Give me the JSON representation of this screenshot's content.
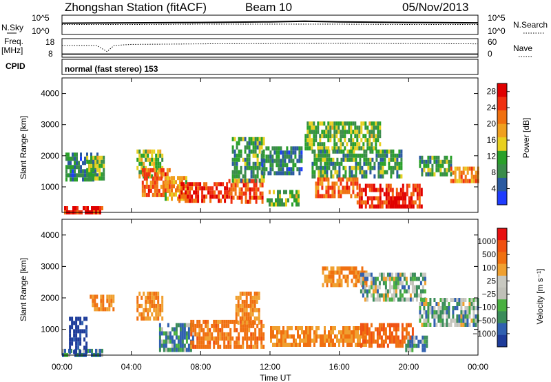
{
  "header": {
    "station_title": "Zhongshan Station (fitACF)",
    "beam_label": "Beam 10",
    "date": "05/Nov/2013"
  },
  "strips": {
    "nsky": {
      "left_label": "N.Sky",
      "left_ticks": [
        "10^5",
        "10^0"
      ],
      "right_ticks": [
        "10^5",
        "10^0"
      ],
      "right_label": "N.Search"
    },
    "freq": {
      "left_label_top": "Freq.",
      "left_label_unit": "[MHz]",
      "left_ticks": [
        "18",
        "8"
      ],
      "right_ticks": [
        "60",
        "0"
      ],
      "right_label": "Nave"
    },
    "cpid": {
      "label": "CPID",
      "mode_text": "normal (fast stereo) 153"
    }
  },
  "power_panel": {
    "ylabel": "Slant Range [km]",
    "yticks": [
      "1000",
      "2000",
      "3000",
      "4000"
    ],
    "colorbar_label": "Power [dB]",
    "colorbar_ticks": [
      "4",
      "8",
      "12",
      "16",
      "20",
      "24",
      "28"
    ],
    "colors": [
      "#1e3cff",
      "#2a5aa0",
      "#3a8c4a",
      "#2aa02a",
      "#e8d020",
      "#f0a020",
      "#f07010",
      "#f03010",
      "#e00000"
    ]
  },
  "velocity_panel": {
    "ylabel": "Slant Range [km]",
    "yticks": [
      "1000",
      "2000",
      "3000",
      "4000"
    ],
    "colorbar_label": "Velocity [m s⁻¹]",
    "colorbar_ticks": [
      "1000",
      "500",
      "100",
      "25",
      "−25",
      "−100",
      "−500",
      "−1000"
    ],
    "colors": [
      "#1e3c9a",
      "#3060b0",
      "#3a8c5a",
      "#4ab040",
      "#c0c0b8",
      "#c8c8c0",
      "#f0a030",
      "#f07010",
      "#f05010",
      "#e81010"
    ]
  },
  "xaxis": {
    "label": "Time UT",
    "ticks": [
      "00:00",
      "04:00",
      "08:00",
      "12:00",
      "16:00",
      "20:00",
      "00:00"
    ]
  },
  "chart_data": [
    {
      "type": "line",
      "title": "N.Sky / N.Search",
      "x_range": [
        0,
        24
      ],
      "series": [
        {
          "name": "N.Sky",
          "x": [
            0,
            4,
            8,
            12,
            14,
            16,
            20,
            24
          ],
          "values": [
            3.0,
            3.1,
            3.2,
            3.4,
            3.6,
            3.4,
            3.2,
            3.1
          ]
        },
        {
          "name": "N.Search",
          "x": [
            0,
            4,
            8,
            12,
            16,
            20,
            24
          ],
          "values": [
            2.6,
            2.6,
            2.7,
            2.7,
            2.7,
            2.6,
            2.6
          ]
        }
      ]
    },
    {
      "type": "line",
      "title": "Freq. / Nave",
      "x_range": [
        0,
        24
      ],
      "series": [
        {
          "name": "Freq.",
          "x": [
            0,
            24
          ],
          "values": [
            9.5,
            9.5
          ]
        },
        {
          "name": "Nave",
          "x": [
            0,
            2,
            2.6,
            3,
            4,
            8,
            12,
            16,
            20,
            24
          ],
          "values": [
            40,
            40,
            18,
            40,
            44,
            46,
            47,
            48,
            47,
            46
          ]
        }
      ]
    },
    {
      "type": "heatmap",
      "title": "Power [dB]",
      "x_range": [
        0,
        24
      ],
      "ylim": [
        180,
        4500
      ],
      "value_range": [
        0,
        30
      ],
      "regions": [
        {
          "t0": 0.0,
          "t1": 2.3,
          "r0": 200,
          "r1": 380,
          "v": 26
        },
        {
          "t0": 0.2,
          "t1": 2.0,
          "r0": 1200,
          "r1": 2100,
          "v": 8
        },
        {
          "t0": 1.4,
          "t1": 2.4,
          "r0": 1300,
          "r1": 2000,
          "v": 12
        },
        {
          "t0": 4.3,
          "t1": 5.8,
          "r0": 1300,
          "r1": 2200,
          "v": 14
        },
        {
          "t0": 4.6,
          "t1": 6.2,
          "r0": 800,
          "r1": 1600,
          "v": 22
        },
        {
          "t0": 5.8,
          "t1": 7.2,
          "r0": 650,
          "r1": 1350,
          "v": 18
        },
        {
          "t0": 6.6,
          "t1": 9.6,
          "r0": 550,
          "r1": 1150,
          "v": 26
        },
        {
          "t0": 9.6,
          "t1": 11.6,
          "r0": 500,
          "r1": 1250,
          "v": 24
        },
        {
          "t0": 9.8,
          "t1": 11.6,
          "r0": 1200,
          "r1": 2600,
          "v": 10
        },
        {
          "t0": 11.5,
          "t1": 13.8,
          "r0": 1500,
          "r1": 2300,
          "v": 8
        },
        {
          "t0": 11.8,
          "t1": 13.6,
          "r0": 400,
          "r1": 900,
          "v": 12
        },
        {
          "t0": 14.0,
          "t1": 18.4,
          "r0": 2200,
          "r1": 3100,
          "v": 12
        },
        {
          "t0": 14.4,
          "t1": 19.6,
          "r0": 1300,
          "r1": 2200,
          "v": 10
        },
        {
          "t0": 14.6,
          "t1": 17.0,
          "r0": 650,
          "r1": 1300,
          "v": 22
        },
        {
          "t0": 17.0,
          "t1": 20.8,
          "r0": 400,
          "r1": 1100,
          "v": 26
        },
        {
          "t0": 18.8,
          "t1": 20.2,
          "r0": 400,
          "r1": 700,
          "v": 29
        },
        {
          "t0": 20.6,
          "t1": 22.4,
          "r0": 1400,
          "r1": 2000,
          "v": 10
        },
        {
          "t0": 22.4,
          "t1": 24.0,
          "r0": 1250,
          "r1": 1650,
          "v": 20
        }
      ]
    },
    {
      "type": "heatmap",
      "title": "Velocity [m s⁻¹]",
      "x_range": [
        0,
        24
      ],
      "ylim": [
        180,
        4500
      ],
      "value_range": [
        -1000,
        1000
      ],
      "regions": [
        {
          "t0": 0.0,
          "t1": 2.3,
          "r0": 200,
          "r1": 380,
          "v": 80
        },
        {
          "t0": 0.4,
          "t1": 1.4,
          "r0": 250,
          "r1": 1400,
          "v": 600
        },
        {
          "t0": 1.6,
          "t1": 3.0,
          "r0": 1600,
          "r1": 2100,
          "v": -300
        },
        {
          "t0": 4.3,
          "t1": 5.8,
          "r0": 1300,
          "r1": 2200,
          "v": -300
        },
        {
          "t0": 5.6,
          "t1": 7.6,
          "r0": 300,
          "r1": 1200,
          "v": 80
        },
        {
          "t0": 7.4,
          "t1": 11.6,
          "r0": 450,
          "r1": 1300,
          "v": -400
        },
        {
          "t0": 10.0,
          "t1": 11.4,
          "r0": 1200,
          "r1": 2200,
          "v": -300
        },
        {
          "t0": 12.0,
          "t1": 17.6,
          "r0": 450,
          "r1": 1100,
          "v": -300
        },
        {
          "t0": 15.0,
          "t1": 17.6,
          "r0": 2400,
          "r1": 3000,
          "v": -300
        },
        {
          "t0": 17.2,
          "t1": 21.0,
          "r0": 2000,
          "r1": 2800,
          "v": 0
        },
        {
          "t0": 17.2,
          "t1": 20.2,
          "r0": 500,
          "r1": 1200,
          "v": -500
        },
        {
          "t0": 19.8,
          "t1": 21.0,
          "r0": 400,
          "r1": 800,
          "v": 80
        },
        {
          "t0": 20.6,
          "t1": 24.0,
          "r0": 1100,
          "r1": 2000,
          "v": 0
        }
      ]
    }
  ]
}
